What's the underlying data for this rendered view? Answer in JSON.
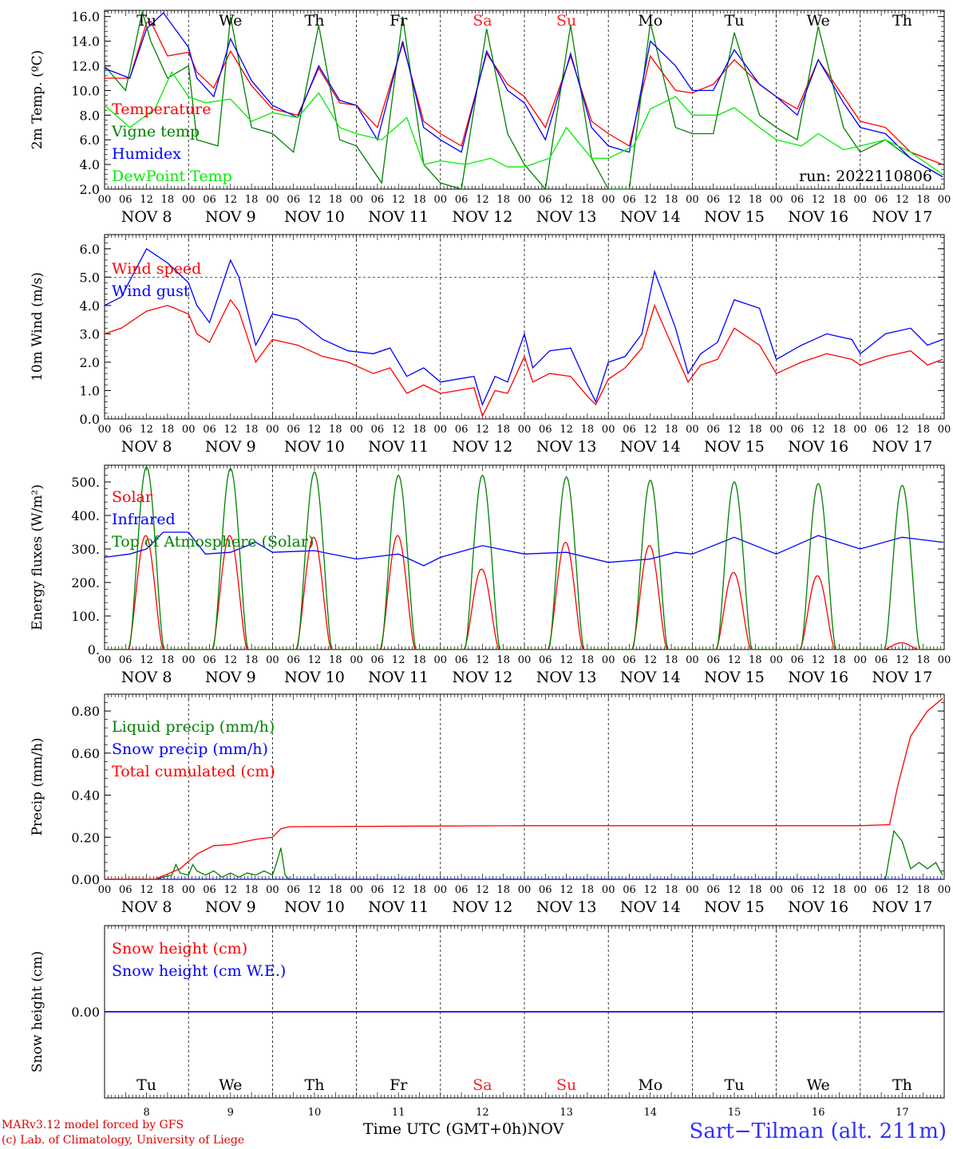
{
  "run_label": "run: 2022110806",
  "hour_ticks": [
    "00",
    "06",
    "12",
    "18"
  ],
  "final_hour_tick": "00",
  "dates": [
    "NOV  8",
    "NOV  9",
    "NOV 10",
    "NOV 11",
    "NOV 12",
    "NOV 13",
    "NOV 14",
    "NOV 15",
    "NOV 16",
    "NOV 17"
  ],
  "weekdays": [
    "Tu",
    "We",
    "Th",
    "Fr",
    "Sa",
    "Su",
    "Mo",
    "Tu",
    "We",
    "Th"
  ],
  "weekend_color": "#ff2020",
  "day_numbers": [
    "8",
    "9",
    "10",
    "11",
    "12",
    "13",
    "14",
    "15",
    "16",
    "17"
  ],
  "footer": {
    "model": "MARv3.12 model forced by GFS",
    "copyright": "(c) Lab. of Climatology, University of Liege",
    "time_axis": "Time UTC (GMT+0h)",
    "month": "NOV",
    "station": "Sart−Tilman (alt. 211m)"
  },
  "chart_data": [
    {
      "type": "line",
      "ylabel": "2m Temp. (ºC)",
      "ylim": [
        2,
        16.5
      ],
      "yticks": [
        2,
        4,
        6,
        8,
        10,
        12,
        14,
        16
      ],
      "ytick_labels": [
        "2.0",
        "4.0",
        "6.0",
        "8.0",
        "10.0",
        "12.0",
        "14.0",
        "16.0"
      ],
      "x_unit": "days since 2022-11-08 00 UTC",
      "series": [
        {
          "name": "Temperature",
          "color": "#ff0000",
          "x": [
            0,
            0.3,
            0.5,
            0.55,
            0.75,
            1.0,
            1.1,
            1.3,
            1.5,
            1.75,
            2.0,
            2.3,
            2.55,
            2.8,
            3.0,
            3.25,
            3.55,
            3.8,
            4.0,
            4.25,
            4.55,
            4.8,
            5.0,
            5.25,
            5.55,
            5.8,
            6.0,
            6.25,
            6.5,
            6.8,
            7.0,
            7.25,
            7.5,
            7.8,
            8.0,
            8.25,
            8.5,
            8.8,
            9.0,
            9.3,
            9.6,
            9.98
          ],
          "values": [
            11.0,
            11.0,
            15.5,
            15.6,
            12.8,
            13.1,
            11.5,
            10.2,
            13.2,
            10.4,
            8.5,
            8.0,
            11.8,
            9.0,
            8.8,
            7.0,
            13.8,
            7.5,
            6.5,
            5.5,
            13.0,
            10.5,
            9.5,
            7.0,
            12.8,
            7.5,
            6.5,
            5.5,
            12.8,
            10.0,
            9.8,
            10.5,
            12.5,
            10.5,
            9.5,
            8.5,
            12.5,
            9.5,
            7.5,
            7.0,
            5.0,
            4.0
          ]
        },
        {
          "name": "Vigne temp",
          "color": "#008000",
          "x": [
            0,
            0.25,
            0.45,
            0.55,
            0.75,
            1.0,
            1.1,
            1.35,
            1.5,
            1.75,
            2.0,
            2.25,
            2.55,
            2.8,
            3.0,
            3.3,
            3.55,
            3.8,
            4.0,
            4.25,
            4.55,
            4.8,
            5.0,
            5.25,
            5.55,
            5.8,
            6.0,
            6.25,
            6.5,
            6.8,
            7.0,
            7.25,
            7.5,
            7.8,
            8.0,
            8.25,
            8.5,
            8.8,
            9.0,
            9.3,
            9.6,
            9.98
          ],
          "values": [
            12.0,
            10.0,
            16.4,
            14.0,
            11.0,
            12.0,
            6.0,
            5.5,
            16.0,
            7.0,
            6.5,
            5.0,
            15.3,
            6.0,
            5.5,
            2.5,
            16.0,
            4.0,
            2.5,
            2.0,
            15.0,
            6.5,
            4.0,
            2.0,
            15.3,
            4.5,
            2.0,
            2.0,
            15.5,
            7.0,
            6.5,
            6.5,
            14.7,
            8.0,
            7.0,
            6.0,
            15.2,
            7.0,
            5.0,
            6.0,
            4.5,
            3.0
          ]
        },
        {
          "name": "Humidex",
          "color": "#0000ff",
          "x": [
            0,
            0.3,
            0.5,
            0.7,
            1.0,
            1.1,
            1.3,
            1.5,
            1.75,
            2.0,
            2.3,
            2.55,
            2.8,
            3.0,
            3.25,
            3.55,
            3.8,
            4.0,
            4.25,
            4.55,
            4.8,
            5.0,
            5.25,
            5.55,
            5.8,
            6.0,
            6.25,
            6.5,
            6.8,
            7.0,
            7.25,
            7.5,
            7.8,
            8.0,
            8.25,
            8.5,
            8.8,
            9.0,
            9.3,
            9.6,
            9.98
          ],
          "values": [
            11.8,
            11.0,
            15.0,
            16.3,
            13.5,
            11.0,
            9.5,
            14.2,
            10.8,
            8.8,
            7.8,
            12.0,
            9.2,
            8.8,
            6.0,
            14.0,
            7.0,
            6.0,
            5.0,
            13.2,
            10.0,
            9.0,
            6.0,
            13.0,
            7.0,
            5.5,
            5.0,
            14.0,
            12.0,
            10.0,
            10.0,
            13.3,
            10.5,
            9.5,
            8.0,
            12.5,
            9.0,
            7.0,
            6.5,
            4.5,
            3.0
          ]
        },
        {
          "name": "DewPoint Temp",
          "color": "#00ee00",
          "x": [
            0,
            0.3,
            0.6,
            0.8,
            1.0,
            1.2,
            1.5,
            1.75,
            2.0,
            2.3,
            2.55,
            2.8,
            3.0,
            3.3,
            3.6,
            3.8,
            4.0,
            4.3,
            4.6,
            4.8,
            5.0,
            5.3,
            5.5,
            5.8,
            6.0,
            6.3,
            6.5,
            6.8,
            7.0,
            7.3,
            7.5,
            7.8,
            8.0,
            8.3,
            8.5,
            8.8,
            9.0,
            9.3,
            9.6,
            9.98
          ],
          "values": [
            8.8,
            7.0,
            8.5,
            11.5,
            9.5,
            9.0,
            9.3,
            7.5,
            8.2,
            7.8,
            9.8,
            7.0,
            6.5,
            6.0,
            7.8,
            4.0,
            4.3,
            4.0,
            4.5,
            3.8,
            3.8,
            4.5,
            7.0,
            4.5,
            4.5,
            5.5,
            8.5,
            9.5,
            8.0,
            8.0,
            8.6,
            7.0,
            6.0,
            5.5,
            6.5,
            5.2,
            5.5,
            6.0,
            5.0,
            3.2
          ]
        }
      ]
    },
    {
      "type": "line",
      "ylabel": "10m Wind (m/s)",
      "ylim": [
        0,
        6.5
      ],
      "yticks": [
        0,
        1,
        2,
        3,
        4,
        5,
        6
      ],
      "ytick_labels": [
        "0.0",
        "1.0",
        "2.0",
        "3.0",
        "4.0",
        "5.0",
        "6.0"
      ],
      "x_unit": "days since 2022-11-08 00 UTC",
      "series": [
        {
          "name": "Wind speed",
          "color": "#ff0000",
          "x": [
            0,
            0.2,
            0.5,
            0.75,
            1.0,
            1.1,
            1.25,
            1.5,
            1.6,
            1.8,
            2.0,
            2.3,
            2.6,
            2.9,
            3.2,
            3.4,
            3.6,
            3.8,
            4.0,
            4.2,
            4.4,
            4.5,
            4.65,
            4.8,
            5.0,
            5.1,
            5.3,
            5.55,
            5.75,
            5.85,
            6.0,
            6.2,
            6.4,
            6.55,
            6.8,
            6.95,
            7.1,
            7.3,
            7.5,
            7.8,
            8.0,
            8.3,
            8.6,
            8.9,
            9.0,
            9.3,
            9.6,
            9.8,
            9.98
          ],
          "values": [
            3.0,
            3.2,
            3.8,
            4.0,
            3.7,
            3.0,
            2.7,
            4.2,
            3.8,
            2.0,
            2.8,
            2.6,
            2.2,
            2.0,
            1.6,
            1.8,
            0.9,
            1.2,
            0.9,
            1.0,
            1.1,
            0.1,
            1.0,
            0.9,
            2.2,
            1.3,
            1.6,
            1.5,
            0.8,
            0.5,
            1.4,
            1.8,
            2.5,
            4.0,
            2.3,
            1.3,
            1.9,
            2.1,
            3.2,
            2.6,
            1.6,
            2.0,
            2.3,
            2.1,
            1.9,
            2.2,
            2.4,
            1.9,
            2.1
          ]
        },
        {
          "name": "Wind gust",
          "color": "#0000ff",
          "x": [
            0,
            0.2,
            0.5,
            0.75,
            1.0,
            1.1,
            1.25,
            1.5,
            1.6,
            1.8,
            2.0,
            2.3,
            2.6,
            2.9,
            3.2,
            3.4,
            3.6,
            3.8,
            4.0,
            4.2,
            4.4,
            4.5,
            4.65,
            4.8,
            5.0,
            5.1,
            5.3,
            5.55,
            5.75,
            5.85,
            6.0,
            6.2,
            6.4,
            6.55,
            6.8,
            6.95,
            7.1,
            7.3,
            7.5,
            7.8,
            8.0,
            8.3,
            8.6,
            8.9,
            9.0,
            9.3,
            9.6,
            9.8,
            9.98
          ],
          "values": [
            4.0,
            4.3,
            6.0,
            5.5,
            4.8,
            4.0,
            3.4,
            5.6,
            5.0,
            2.6,
            3.7,
            3.5,
            2.8,
            2.4,
            2.3,
            2.5,
            1.5,
            1.8,
            1.3,
            1.4,
            1.5,
            0.5,
            1.5,
            1.3,
            3.0,
            1.8,
            2.4,
            2.5,
            1.2,
            0.6,
            2.0,
            2.2,
            3.0,
            5.2,
            3.2,
            1.6,
            2.3,
            2.7,
            4.2,
            3.9,
            2.1,
            2.6,
            3.0,
            2.8,
            2.3,
            3.0,
            3.2,
            2.6,
            2.8
          ]
        }
      ]
    },
    {
      "type": "line",
      "ylabel": "Energy fluxes (W/m²)",
      "ylim": [
        0,
        550
      ],
      "yticks": [
        0,
        100,
        200,
        300,
        400,
        500
      ],
      "ytick_labels": [
        "0.",
        "100.",
        "200.",
        "300.",
        "400.",
        "500."
      ],
      "x_unit": "days since 2022-11-08 00 UTC",
      "daily_peaks": {
        "solar": [
          340,
          340,
          335,
          340,
          240,
          320,
          310,
          230,
          220,
          20
        ],
        "toa_solar": [
          545,
          540,
          530,
          520,
          520,
          515,
          505,
          500,
          495,
          490
        ]
      },
      "series": [
        {
          "name": "Solar",
          "color": "#ff0000"
        },
        {
          "name": "Infrared",
          "color": "#0000ff",
          "x": [
            0,
            0.3,
            0.5,
            0.7,
            1.0,
            1.2,
            1.5,
            1.8,
            2.0,
            2.5,
            3.0,
            3.5,
            3.8,
            4.0,
            4.5,
            5.0,
            5.5,
            6.0,
            6.5,
            6.8,
            7.0,
            7.5,
            8.0,
            8.5,
            9.0,
            9.5,
            9.98
          ],
          "values": [
            275,
            285,
            300,
            350,
            350,
            285,
            290,
            320,
            290,
            295,
            270,
            285,
            250,
            275,
            310,
            285,
            290,
            260,
            270,
            290,
            285,
            335,
            285,
            340,
            300,
            335,
            320
          ]
        },
        {
          "name": "Top of Atmosphere (Solar)",
          "color": "#008000"
        }
      ]
    },
    {
      "type": "line",
      "ylabel": "Precip (mm/h)",
      "ylim": [
        0,
        0.88
      ],
      "yticks": [
        0,
        0.2,
        0.4,
        0.6,
        0.8
      ],
      "ytick_labels": [
        "0.00",
        "0.20",
        "0.40",
        "0.60",
        "0.80"
      ],
      "x_unit": "days since 2022-11-08 00 UTC",
      "series": [
        {
          "name": "Liquid precip (mm/h)",
          "color": "#008000",
          "x": [
            0,
            0.6,
            0.8,
            0.85,
            0.9,
            1.0,
            1.05,
            1.1,
            1.2,
            1.3,
            1.4,
            1.5,
            1.6,
            1.7,
            1.8,
            1.9,
            2.0,
            2.05,
            2.1,
            2.15,
            2.2,
            2.5,
            9.3,
            9.4,
            9.5,
            9.6,
            9.7,
            9.8,
            9.9,
            9.98
          ],
          "values": [
            0,
            0,
            0.02,
            0.07,
            0.03,
            0.02,
            0.07,
            0.04,
            0.02,
            0.04,
            0.01,
            0.03,
            0.01,
            0.03,
            0.02,
            0.04,
            0.02,
            0.08,
            0.15,
            0.02,
            0,
            0,
            0,
            0.23,
            0.18,
            0.05,
            0.08,
            0.05,
            0.08,
            0.02
          ]
        },
        {
          "name": "Snow precip (mm/h)",
          "color": "#0000ff",
          "x": [
            0,
            9.98
          ],
          "values": [
            0,
            0
          ]
        },
        {
          "name": "Total cumulated (cm)",
          "color": "#ff0000",
          "x": [
            0,
            0.6,
            0.9,
            1.1,
            1.3,
            1.5,
            1.8,
            2.0,
            2.1,
            2.2,
            5.0,
            9.0,
            9.35,
            9.45,
            9.6,
            9.8,
            9.98
          ],
          "values": [
            0,
            0,
            0.05,
            0.12,
            0.16,
            0.165,
            0.19,
            0.2,
            0.24,
            0.25,
            0.255,
            0.255,
            0.26,
            0.45,
            0.68,
            0.8,
            0.86
          ]
        }
      ]
    },
    {
      "type": "line",
      "ylabel": "Snow height (cm)",
      "ylim": [
        -1,
        1
      ],
      "yticks": [
        0
      ],
      "ytick_labels": [
        "0.00"
      ],
      "x_unit": "days since 2022-11-08 00 UTC",
      "series": [
        {
          "name": "Snow height (cm)",
          "color": "#ff0000",
          "x": [
            0,
            9.98
          ],
          "values": [
            0,
            0
          ]
        },
        {
          "name": "Snow height (cm W.E.)",
          "color": "#0000ff",
          "x": [
            0,
            9.98
          ],
          "values": [
            0,
            0
          ]
        }
      ]
    }
  ]
}
